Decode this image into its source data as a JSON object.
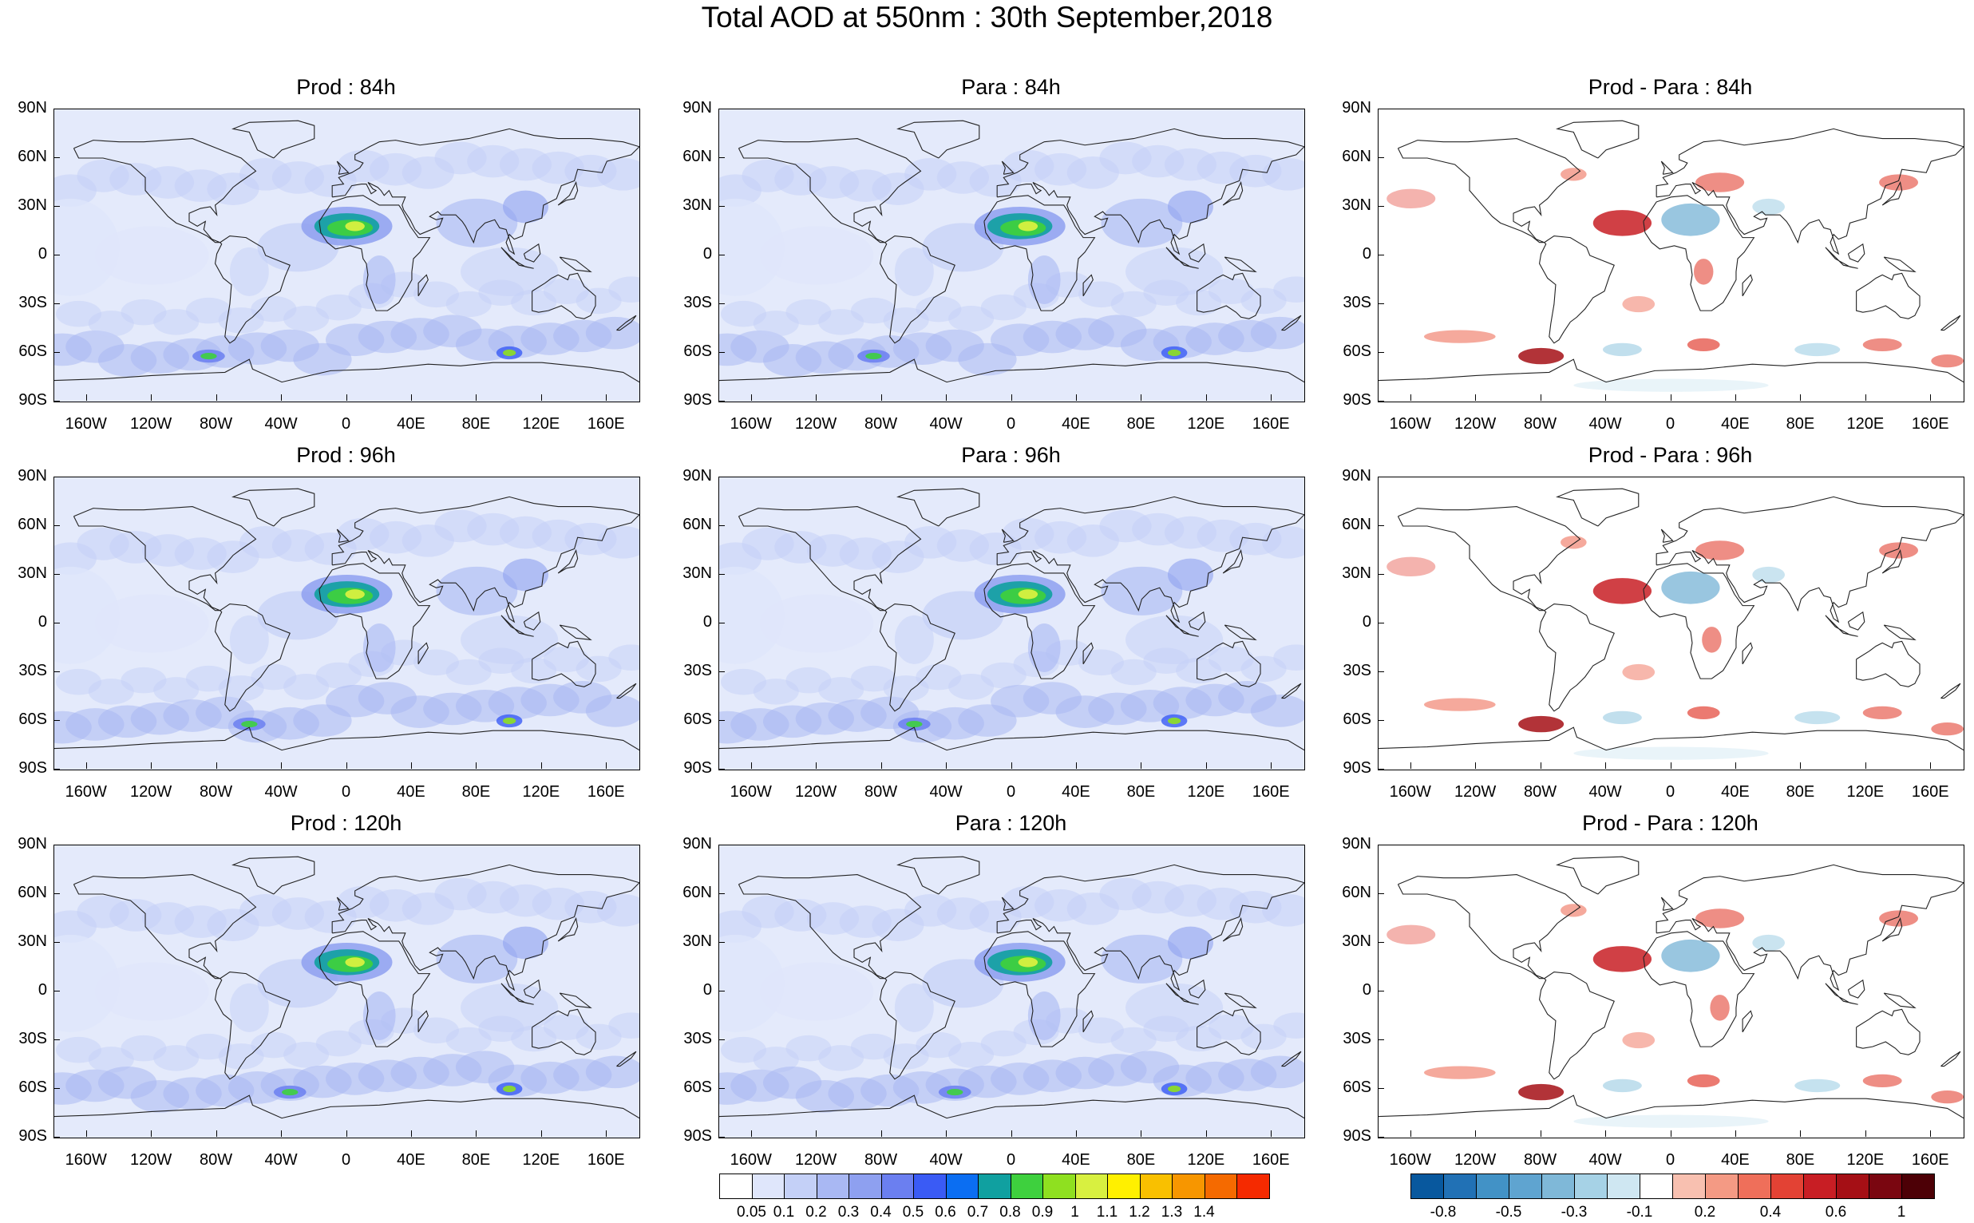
{
  "title": "Total AOD at 550nm : 30th September,2018",
  "lat_labels": [
    "90N",
    "60N",
    "30N",
    "0",
    "30S",
    "60S",
    "90S"
  ],
  "lon_labels": [
    "160W",
    "120W",
    "80W",
    "40W",
    "0",
    "40E",
    "80E",
    "120E",
    "160E"
  ],
  "panels": [
    {
      "title": "Prod : 84h",
      "kind": "aod"
    },
    {
      "title": "Para : 84h",
      "kind": "aod"
    },
    {
      "title": "Prod - Para : 84h",
      "kind": "diff"
    },
    {
      "title": "Prod : 96h",
      "kind": "aod"
    },
    {
      "title": "Para : 96h",
      "kind": "aod"
    },
    {
      "title": "Prod - Para : 96h",
      "kind": "diff"
    },
    {
      "title": "Prod : 120h",
      "kind": "aod"
    },
    {
      "title": "Para : 120h",
      "kind": "aod"
    },
    {
      "title": "Prod - Para : 120h",
      "kind": "diff"
    }
  ],
  "aod_colorbar": {
    "labels": [
      "0.05",
      "0.1",
      "0.2",
      "0.3",
      "0.4",
      "0.5",
      "0.6",
      "0.7",
      "0.8",
      "0.9",
      "1",
      "1.1",
      "1.2",
      "1.3",
      "1.4"
    ],
    "colors": [
      "#ffffff",
      "#dfe6fb",
      "#c4d0f7",
      "#a9b8f3",
      "#8ea0f0",
      "#6b7ff0",
      "#3a5bf5",
      "#0b6ef2",
      "#10a0a0",
      "#3ed03e",
      "#8fe020",
      "#d8f040",
      "#fff000",
      "#f9c000",
      "#f79600",
      "#f56a00",
      "#f52a00"
    ]
  },
  "diff_colorbar": {
    "labels": [
      "-0.8",
      "-0.5",
      "-0.3",
      "-0.1",
      "0.2",
      "0.4",
      "0.6",
      "1"
    ],
    "colors": [
      "#08589e",
      "#2171b5",
      "#4292c6",
      "#5fa4d0",
      "#7fb8d8",
      "#a6d2e6",
      "#cfe7f2",
      "#ffffff",
      "#f8c0b0",
      "#f49a84",
      "#ef6f5a",
      "#e34234",
      "#c81e24",
      "#a50f15",
      "#7a0610",
      "#4d0006"
    ]
  }
}
